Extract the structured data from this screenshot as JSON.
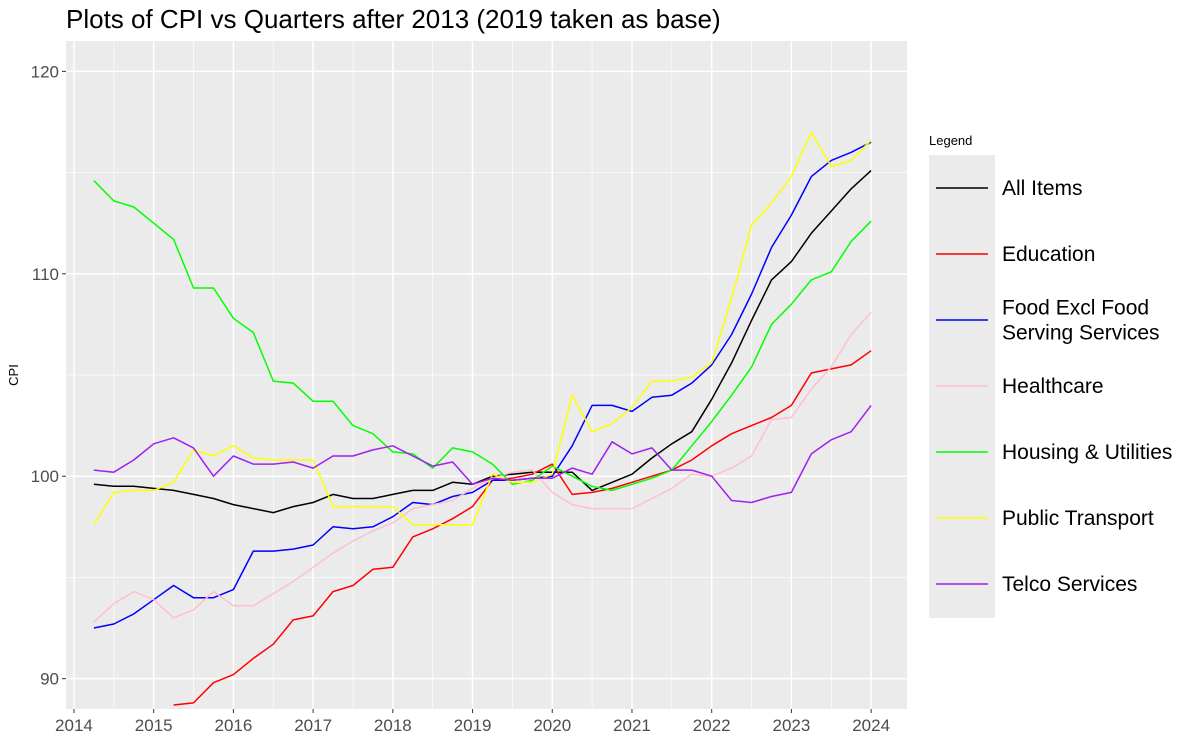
{
  "chart_data": {
    "type": "line",
    "title": "Plots of CPI vs Quarters after 2013 (2019 taken as base)",
    "xlabel": "",
    "ylabel": "CPI",
    "legend_title": "Legend",
    "legend_position": "right",
    "grid": true,
    "xlim": [
      2013.9,
      2024.45
    ],
    "ylim": [
      88.5,
      121.5
    ],
    "x_ticks": [
      "2014",
      "2015",
      "2016",
      "2017",
      "2018",
      "2019",
      "2020",
      "2021",
      "2022",
      "2023",
      "2024"
    ],
    "y_ticks": [
      "90",
      "100",
      "110",
      "120"
    ],
    "x": [
      2014.25,
      2014.5,
      2014.75,
      2015.0,
      2015.25,
      2015.5,
      2015.75,
      2016.0,
      2016.25,
      2016.5,
      2016.75,
      2017.0,
      2017.25,
      2017.5,
      2017.75,
      2018.0,
      2018.25,
      2018.5,
      2018.75,
      2019.0,
      2019.25,
      2019.5,
      2019.75,
      2020.0,
      2020.25,
      2020.5,
      2020.75,
      2021.0,
      2021.25,
      2021.5,
      2021.75,
      2022.0,
      2022.25,
      2022.5,
      2022.75,
      2023.0,
      2023.25,
      2023.5,
      2023.75,
      2024.0
    ],
    "series": [
      {
        "name": "All Items",
        "color": "#000000",
        "values": [
          99.6,
          99.5,
          99.5,
          99.4,
          99.3,
          99.1,
          98.9,
          98.6,
          98.4,
          98.2,
          98.5,
          98.7,
          99.1,
          98.9,
          98.9,
          99.1,
          99.3,
          99.3,
          99.7,
          99.6,
          100.0,
          100.1,
          100.2,
          100.2,
          100.2,
          99.3,
          99.7,
          100.1,
          100.9,
          101.6,
          102.2,
          103.8,
          105.6,
          107.7,
          109.7,
          110.6,
          112.0,
          113.1,
          114.2,
          115.1
        ]
      },
      {
        "name": "Education",
        "color": "#ff0000",
        "values": [
          null,
          null,
          null,
          null,
          88.7,
          88.8,
          89.8,
          90.2,
          91.0,
          91.7,
          92.9,
          93.1,
          94.3,
          94.6,
          95.4,
          95.5,
          97.0,
          97.4,
          97.9,
          98.5,
          99.8,
          99.9,
          100.1,
          100.6,
          99.1,
          99.2,
          99.4,
          99.7,
          100.0,
          100.3,
          100.8,
          101.5,
          102.1,
          102.5,
          102.9,
          103.5,
          105.1,
          105.3,
          105.5,
          106.2
        ]
      },
      {
        "name": "Food Excl Food\nServing Services",
        "color": "#0000ff",
        "values": [
          92.5,
          92.7,
          93.2,
          93.9,
          94.6,
          94.0,
          94.0,
          94.4,
          96.3,
          96.3,
          96.4,
          96.6,
          97.5,
          97.4,
          97.5,
          98.0,
          98.7,
          98.6,
          99.0,
          99.2,
          99.8,
          99.8,
          99.9,
          100.0,
          101.5,
          103.5,
          103.5,
          103.2,
          103.9,
          104.0,
          104.6,
          105.5,
          107.0,
          109.0,
          111.3,
          112.9,
          114.8,
          115.6,
          116.0,
          116.5
        ]
      },
      {
        "name": "Healthcare",
        "color": "#ffc0cb",
        "values": [
          92.8,
          93.7,
          94.3,
          93.9,
          93.0,
          93.4,
          94.3,
          93.6,
          93.6,
          94.2,
          94.8,
          95.5,
          96.2,
          96.8,
          97.3,
          97.7,
          98.4,
          98.6,
          98.8,
          99.4,
          99.9,
          100.2,
          100.3,
          99.2,
          98.6,
          98.4,
          98.4,
          98.4,
          98.9,
          99.4,
          100.1,
          100.0,
          100.4,
          101.0,
          102.8,
          102.9,
          104.3,
          105.4,
          107.0,
          108.1
        ]
      },
      {
        "name": "Housing & Utilities",
        "color": "#00ff00",
        "values": [
          114.6,
          113.6,
          113.3,
          112.5,
          111.7,
          109.3,
          109.3,
          107.8,
          107.1,
          104.7,
          104.6,
          103.7,
          103.7,
          102.5,
          102.1,
          101.2,
          101.1,
          100.4,
          101.4,
          101.2,
          100.6,
          99.6,
          99.8,
          100.5,
          100.0,
          99.5,
          99.3,
          99.6,
          99.9,
          100.3,
          101.5,
          102.7,
          104.0,
          105.4,
          107.5,
          108.5,
          109.7,
          110.1,
          111.6,
          112.6
        ]
      },
      {
        "name": "Public Transport",
        "color": "#ffff00",
        "values": [
          97.6,
          99.2,
          99.3,
          99.3,
          99.7,
          101.3,
          101.0,
          101.5,
          100.9,
          100.8,
          100.8,
          100.8,
          98.5,
          98.5,
          98.5,
          98.5,
          97.6,
          97.6,
          97.6,
          97.6,
          100.1,
          99.7,
          99.7,
          100.1,
          104.0,
          102.2,
          102.6,
          103.4,
          104.7,
          104.7,
          104.9,
          105.6,
          108.8,
          112.4,
          113.5,
          114.8,
          117.0,
          115.3,
          115.6,
          116.6
        ]
      },
      {
        "name": "Telco Services",
        "color": "#a020f0",
        "values": [
          100.3,
          100.2,
          100.8,
          101.6,
          101.9,
          101.4,
          100.0,
          101.0,
          100.6,
          100.6,
          100.7,
          100.4,
          101.0,
          101.0,
          101.3,
          101.5,
          101.0,
          100.5,
          100.7,
          99.6,
          99.9,
          99.8,
          99.9,
          99.9,
          100.4,
          100.1,
          101.7,
          101.1,
          101.4,
          100.3,
          100.3,
          100.0,
          98.8,
          98.7,
          99.0,
          99.2,
          101.1,
          101.8,
          102.2,
          103.5
        ]
      }
    ]
  }
}
